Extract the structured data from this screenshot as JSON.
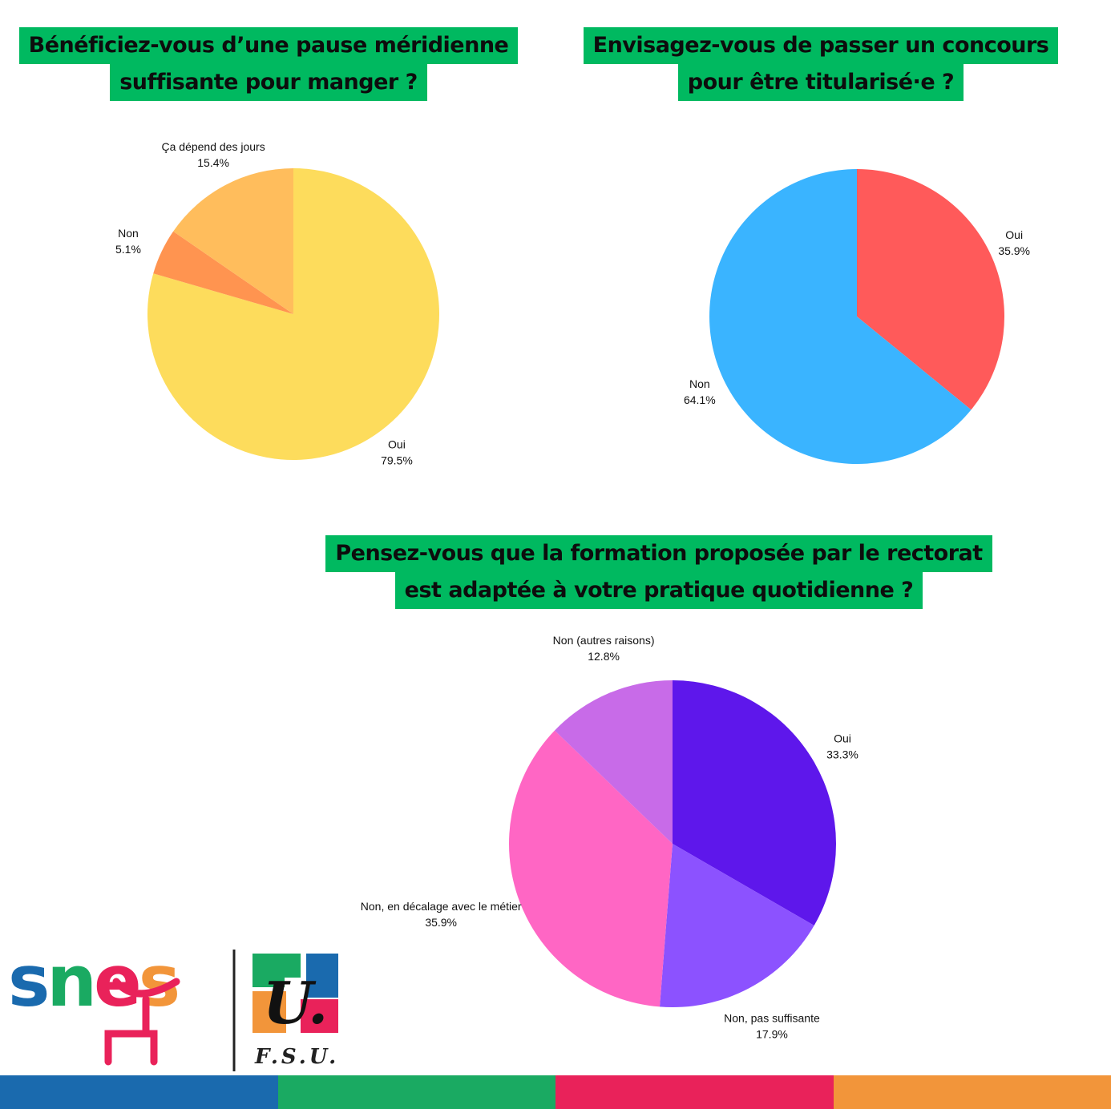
{
  "titles": [
    {
      "lines": [
        "Bénéficiez-vous d’une pause méridienne",
        "suffisante pour manger ?"
      ]
    },
    {
      "lines": [
        "Envisagez-vous de passer un concours",
        "pour être titularisé·e ?"
      ]
    },
    {
      "lines": [
        "Pensez-vous que la formation proposée par le rectorat",
        "est adaptée à votre pratique quotidienne ?"
      ]
    }
  ],
  "chart_data": [
    {
      "type": "pie",
      "title": "Bénéficiez-vous d’une pause méridienne suffisante pour manger ?",
      "slices": [
        {
          "label": "Oui",
          "value": 79.5,
          "display": "79.5%",
          "color": "#FDDC5C"
        },
        {
          "label": "Non",
          "value": 5.1,
          "display": "5.1%",
          "color": "#FF9450"
        },
        {
          "label": "Ça dépend des jours",
          "value": 15.4,
          "display": "15.4%",
          "color": "#FFBD5C"
        }
      ]
    },
    {
      "type": "pie",
      "title": "Envisagez-vous de passer un concours pour être titularisé·e ?",
      "slices": [
        {
          "label": "Oui",
          "value": 35.9,
          "display": "35.9%",
          "color": "#FF5A5A"
        },
        {
          "label": "Non",
          "value": 64.1,
          "display": "64.1%",
          "color": "#3AB4FF"
        }
      ]
    },
    {
      "type": "pie",
      "title": "Pensez-vous que la formation proposée par le rectorat est adaptée à votre pratique quotidienne ?",
      "slices": [
        {
          "label": "Oui",
          "value": 33.3,
          "display": "33.3%",
          "color": "#5E17EB"
        },
        {
          "label": "Non, pas suffisante",
          "value": 17.9,
          "display": "17.9%",
          "color": "#8C52FF"
        },
        {
          "label": "Non, en décalage avec le métier",
          "value": 35.9,
          "display": "35.9%",
          "color": "#FF66C4"
        },
        {
          "label": "Non (autres raisons)",
          "value": 12.8,
          "display": "12.8%",
          "color": "#C86BE8"
        }
      ]
    }
  ],
  "logo": {
    "snes_text": "snes",
    "fsu_letter": "U.",
    "fsu_caption": "F.S.U."
  },
  "colors": {
    "title_bg": "#00B960",
    "footer": [
      "#1A6AAE",
      "#1AAA62",
      "#E9225A",
      "#F2953A"
    ]
  }
}
